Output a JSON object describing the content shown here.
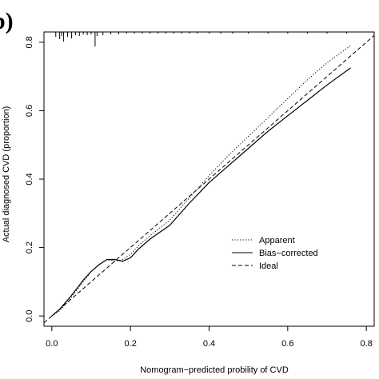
{
  "panel_label": "b)",
  "chart_data": {
    "type": "line",
    "title": "",
    "xlabel": "Nomogram−predicted probility of CVD",
    "ylabel": "Actual diagnosed CVD (proportion)",
    "xlim": [
      -0.02,
      0.82
    ],
    "ylim": [
      -0.03,
      0.83
    ],
    "xticks": [
      0.0,
      0.2,
      0.4,
      0.6,
      0.8
    ],
    "yticks": [
      0.0,
      0.2,
      0.4,
      0.6,
      0.8
    ],
    "xtick_labels": [
      "0.0",
      "0.2",
      "0.4",
      "0.6",
      "0.8"
    ],
    "ytick_labels": [
      "0.0",
      "0.2",
      "0.4",
      "0.6",
      "0.8"
    ],
    "grid": false,
    "legend_position": "bottom-right",
    "series": [
      {
        "name": "Apparent",
        "style": "dotted",
        "x": [
          0.0,
          0.02,
          0.05,
          0.08,
          0.1,
          0.12,
          0.14,
          0.16,
          0.18,
          0.2,
          0.22,
          0.25,
          0.3,
          0.35,
          0.4,
          0.45,
          0.5,
          0.55,
          0.6,
          0.65,
          0.7,
          0.76
        ],
        "y": [
          0.0,
          0.015,
          0.055,
          0.1,
          0.13,
          0.15,
          0.165,
          0.16,
          0.165,
          0.18,
          0.205,
          0.235,
          0.28,
          0.345,
          0.41,
          0.47,
          0.525,
          0.58,
          0.635,
          0.69,
          0.74,
          0.79
        ]
      },
      {
        "name": "Bias−corrected",
        "style": "solid",
        "x": [
          0.0,
          0.02,
          0.05,
          0.08,
          0.1,
          0.12,
          0.14,
          0.16,
          0.18,
          0.2,
          0.22,
          0.25,
          0.3,
          0.35,
          0.4,
          0.45,
          0.5,
          0.55,
          0.6,
          0.65,
          0.7,
          0.76
        ],
        "y": [
          0.0,
          0.02,
          0.06,
          0.105,
          0.13,
          0.15,
          0.165,
          0.165,
          0.16,
          0.17,
          0.195,
          0.225,
          0.265,
          0.33,
          0.39,
          0.44,
          0.49,
          0.54,
          0.585,
          0.63,
          0.675,
          0.725
        ]
      },
      {
        "name": "Ideal",
        "style": "dashed",
        "x": [
          -0.02,
          0.82
        ],
        "y": [
          -0.02,
          0.82
        ]
      }
    ],
    "rug_x": [
      0.01,
      0.02,
      0.025,
      0.03,
      0.04,
      0.05,
      0.06,
      0.07,
      0.08,
      0.09,
      0.1,
      0.11,
      0.115,
      0.13,
      0.15,
      0.17,
      0.19,
      0.21,
      0.23,
      0.25,
      0.27,
      0.29,
      0.31,
      0.33,
      0.35,
      0.37,
      0.4,
      0.43,
      0.46,
      0.5,
      0.55,
      0.6,
      0.65,
      0.7,
      0.75
    ],
    "rug_h": [
      6,
      9,
      5,
      12,
      6,
      8,
      4,
      5,
      3,
      4,
      3,
      18,
      5,
      4,
      3,
      3,
      2,
      2,
      2,
      2,
      2,
      2,
      2,
      2,
      2,
      2,
      2,
      2,
      2,
      2,
      2,
      2,
      2,
      2,
      2
    ],
    "colors": {
      "line": "#000000",
      "background": "#ffffff"
    }
  }
}
